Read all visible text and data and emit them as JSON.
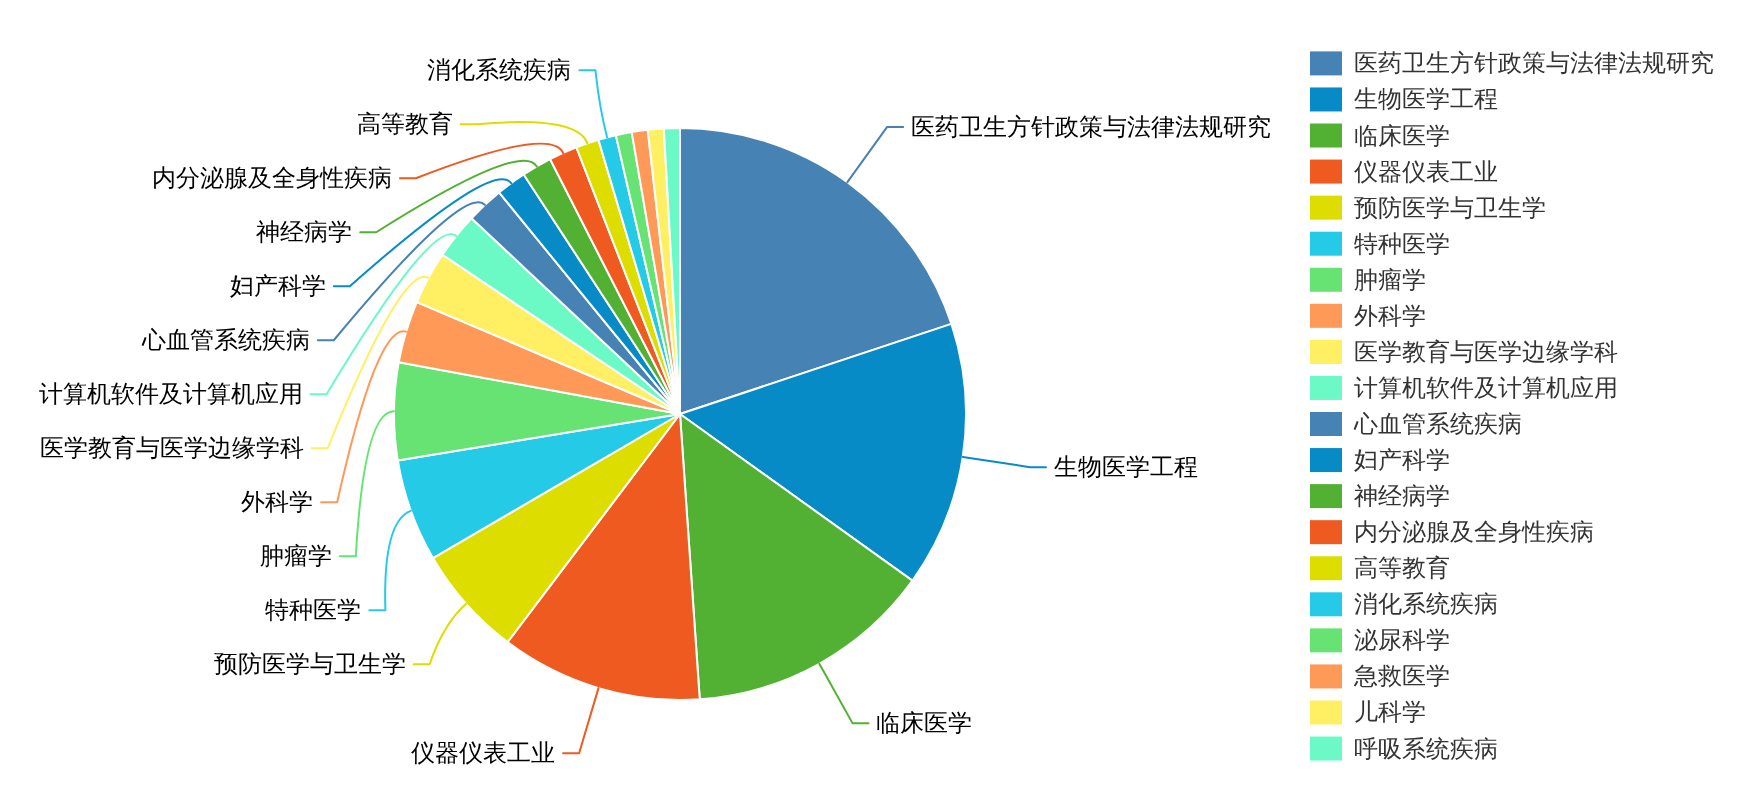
{
  "chart_data": {
    "type": "pie",
    "categories": [
      "医药卫生方针政策与法律法规研究",
      "生物医学工程",
      "临床医学",
      "仪器仪表工业",
      "预防医学与卫生学",
      "特种医学",
      "肿瘤学",
      "外科学",
      "医学教育与医学边缘学科",
      "计算机软件及计算机应用",
      "心血管系统疾病",
      "妇产科学",
      "神经病学",
      "内分泌腺及全身性疾病",
      "高等教育",
      "消化系统疾病",
      "泌尿科学",
      "急救医学",
      "儿科学",
      "呼吸系统疾病"
    ],
    "values": [
      19.9,
      15.0,
      14.0,
      11.4,
      6.3,
      5.8,
      5.5,
      3.5,
      3.0,
      2.6,
      2.1,
      1.7,
      1.7,
      1.6,
      1.3,
      1.0,
      0.9,
      0.9,
      0.9,
      0.9
    ],
    "colors": [
      "#4682b4",
      "#078bc7",
      "#52b133",
      "#ee5a1f",
      "#dddd00",
      "#25cae6",
      "#66e373",
      "#ff9958",
      "#ffef63",
      "#6bf9c6",
      "#4682b4",
      "#078bc7",
      "#52b133",
      "#ee5a1f",
      "#dddd00",
      "#25cae6",
      "#66e373",
      "#ff9958",
      "#ffef63",
      "#6bf9c6"
    ],
    "legend": "right"
  }
}
